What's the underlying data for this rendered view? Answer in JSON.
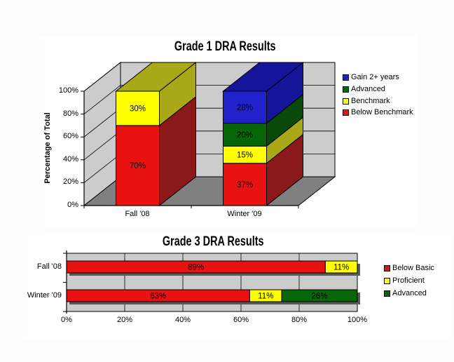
{
  "chart_data": [
    {
      "id": "grade1-dra",
      "type": "bar",
      "subtype": "3d-stacked-column",
      "title": "Grade 1 DRA Results",
      "y_axis": {
        "title": "Percentage of Total",
        "ticks_top_to_bottom": [
          "100%",
          "80%",
          "60%",
          "40%",
          "20%",
          "0%"
        ],
        "range": [
          0,
          100
        ],
        "grid": true
      },
      "categories": [
        "Fall '08",
        "Winter '09"
      ],
      "series": [
        {
          "name": "Below Benchmark",
          "color": "#E81212",
          "dark": "#8C1919",
          "values": [
            70,
            37
          ]
        },
        {
          "name": "Benchmark",
          "color": "#FFFF00",
          "dark": "#A8A818",
          "values": [
            30,
            15
          ]
        },
        {
          "name": "Advanced",
          "color": "#076607",
          "dark": "#094A09",
          "values": [
            0,
            20
          ]
        },
        {
          "name": "Gain 2+ years",
          "color": "#2222CC",
          "dark": "#15159A",
          "values": [
            0,
            28
          ]
        }
      ],
      "data_label_format": "value-percent",
      "legend_position": "right",
      "legend": [
        {
          "label": "Gain 2+ years",
          "color": "#2222CC"
        },
        {
          "label": "Advanced",
          "color": "#076607"
        },
        {
          "label": "Benchmark",
          "color": "#FFFF00"
        },
        {
          "label": "Below Benchmark",
          "color": "#E81212"
        }
      ],
      "colors": {
        "wall": "#CCCCCC",
        "floor": "#808080",
        "axis": "#000000"
      }
    },
    {
      "id": "grade3-dra",
      "type": "bar",
      "subtype": "horizontal-stacked",
      "title": "Grade 3 DRA Results",
      "x_axis": {
        "ticks": [
          "0%",
          "20%",
          "40%",
          "60%",
          "80%",
          "100%"
        ],
        "range": [
          0,
          100
        ],
        "grid": true
      },
      "categories": [
        "Fall '08",
        "Winter '09"
      ],
      "series": [
        {
          "name": "Below Basic",
          "color": "#E81212",
          "values": [
            89,
            63
          ]
        },
        {
          "name": "Proficient",
          "color": "#FFFF00",
          "values": [
            11,
            11
          ]
        },
        {
          "name": "Advanced",
          "color": "#076607",
          "values": [
            0,
            26
          ]
        }
      ],
      "data_label_format": "value-percent",
      "legend_position": "right",
      "legend": [
        {
          "label": "Below Basic",
          "color": "#E81212"
        },
        {
          "label": "Proficient",
          "color": "#FFFF00"
        },
        {
          "label": "Advanced",
          "color": "#076607"
        }
      ],
      "colors": {
        "plot": "#CCCCCC",
        "shadow": "#595959",
        "axis": "#000000"
      }
    }
  ]
}
